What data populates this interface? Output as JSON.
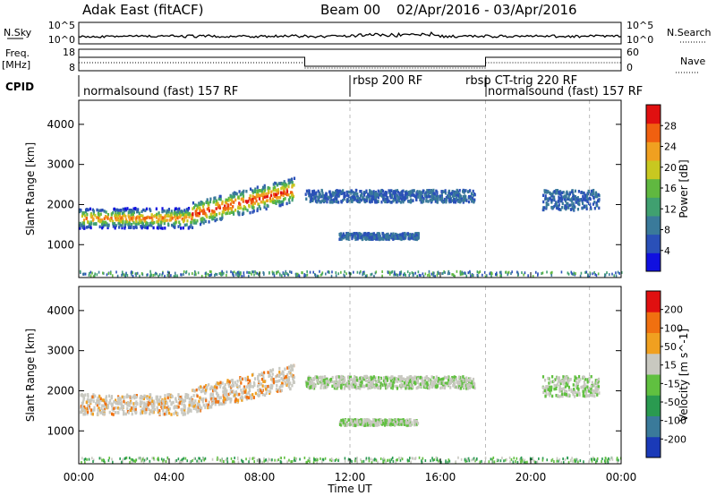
{
  "header": {
    "title": "Adak East (fitACF)",
    "beam": "Beam 00",
    "date_range": "02/Apr/2016 - 03/Apr/2016"
  },
  "noise_panel": {
    "left_label": "N.Sky",
    "left_ticks": [
      "10^5",
      "10^0"
    ],
    "right_label": "N.Search",
    "right_ticks": [
      "10^5",
      "10^0"
    ]
  },
  "freq_panel": {
    "left_label_line1": "Freq.",
    "left_label_line2": "[MHz]",
    "left_ticks": [
      "18",
      "8"
    ],
    "right_label": "Nave",
    "right_ticks": [
      "60",
      "0"
    ],
    "freq_levels": [
      {
        "t_start": 0,
        "t_end": 10,
        "level": "high"
      },
      {
        "t_start": 10,
        "t_end": 18,
        "level": "low"
      },
      {
        "t_start": 18,
        "t_end": 24,
        "level": "high"
      }
    ]
  },
  "cpid": {
    "label": "CPID",
    "modes": [
      {
        "text": "normalsound (fast) 157 RF",
        "t": 0
      },
      {
        "text": "rbsp 200 RF",
        "t": 12
      },
      {
        "text": "rbsp CT-trig 220 RF",
        "t": 18
      },
      {
        "text": "normalsound (fast) 157 RF",
        "t": 18
      }
    ]
  },
  "chart_data": [
    {
      "type": "heatmap",
      "name": "power",
      "ylabel": "Slant Range [km]",
      "ylim": [
        180,
        4600
      ],
      "yticks": [
        "4000",
        "3000",
        "2000",
        "1000"
      ],
      "xlim_hours": [
        0,
        24
      ],
      "colorbar": {
        "label": "Power [dB]",
        "ticks": [
          "28",
          "24",
          "20",
          "16",
          "12",
          "8",
          "4"
        ],
        "colors": [
          "#1010e0",
          "#2a50b8",
          "#3a7a9a",
          "#40a070",
          "#60b840",
          "#c8c820",
          "#f0a020",
          "#f06010",
          "#e01010"
        ]
      },
      "scatter_bands": [
        {
          "t0": 0.0,
          "t1": 2.5,
          "center": 1650,
          "width": 500
        },
        {
          "t0": 2.5,
          "t1": 5.0,
          "center": 1650,
          "width": 500
        },
        {
          "t0": 5.0,
          "t1": 9.5,
          "center": 2050,
          "width": 600
        },
        {
          "t0": 10.0,
          "t1": 17.5,
          "center": 2200,
          "width": 300
        },
        {
          "t0": 11.5,
          "t1": 15.0,
          "center": 1200,
          "width": 150
        },
        {
          "t0": 20.5,
          "t1": 23.0,
          "center": 2100,
          "width": 500
        }
      ]
    },
    {
      "type": "heatmap",
      "name": "velocity",
      "ylabel": "Slant Range [km]",
      "ylim": [
        180,
        4600
      ],
      "yticks": [
        "4000",
        "3000",
        "2000",
        "1000"
      ],
      "xlim_hours": [
        0,
        24
      ],
      "colorbar": {
        "label": "Velocity [m s^-1]",
        "ticks": [
          "200",
          "100",
          "50",
          "15",
          "-15",
          "-50",
          "-100",
          "-200"
        ],
        "colors": [
          "#1a3ab8",
          "#3a7a9a",
          "#2a9a50",
          "#60c040",
          "#c8c8c0",
          "#f0a020",
          "#f07010",
          "#e01010"
        ]
      }
    }
  ],
  "xaxis": {
    "ticks": [
      "00:00",
      "04:00",
      "08:00",
      "12:00",
      "16:00",
      "20:00",
      "00:00"
    ],
    "label": "Time UT"
  }
}
